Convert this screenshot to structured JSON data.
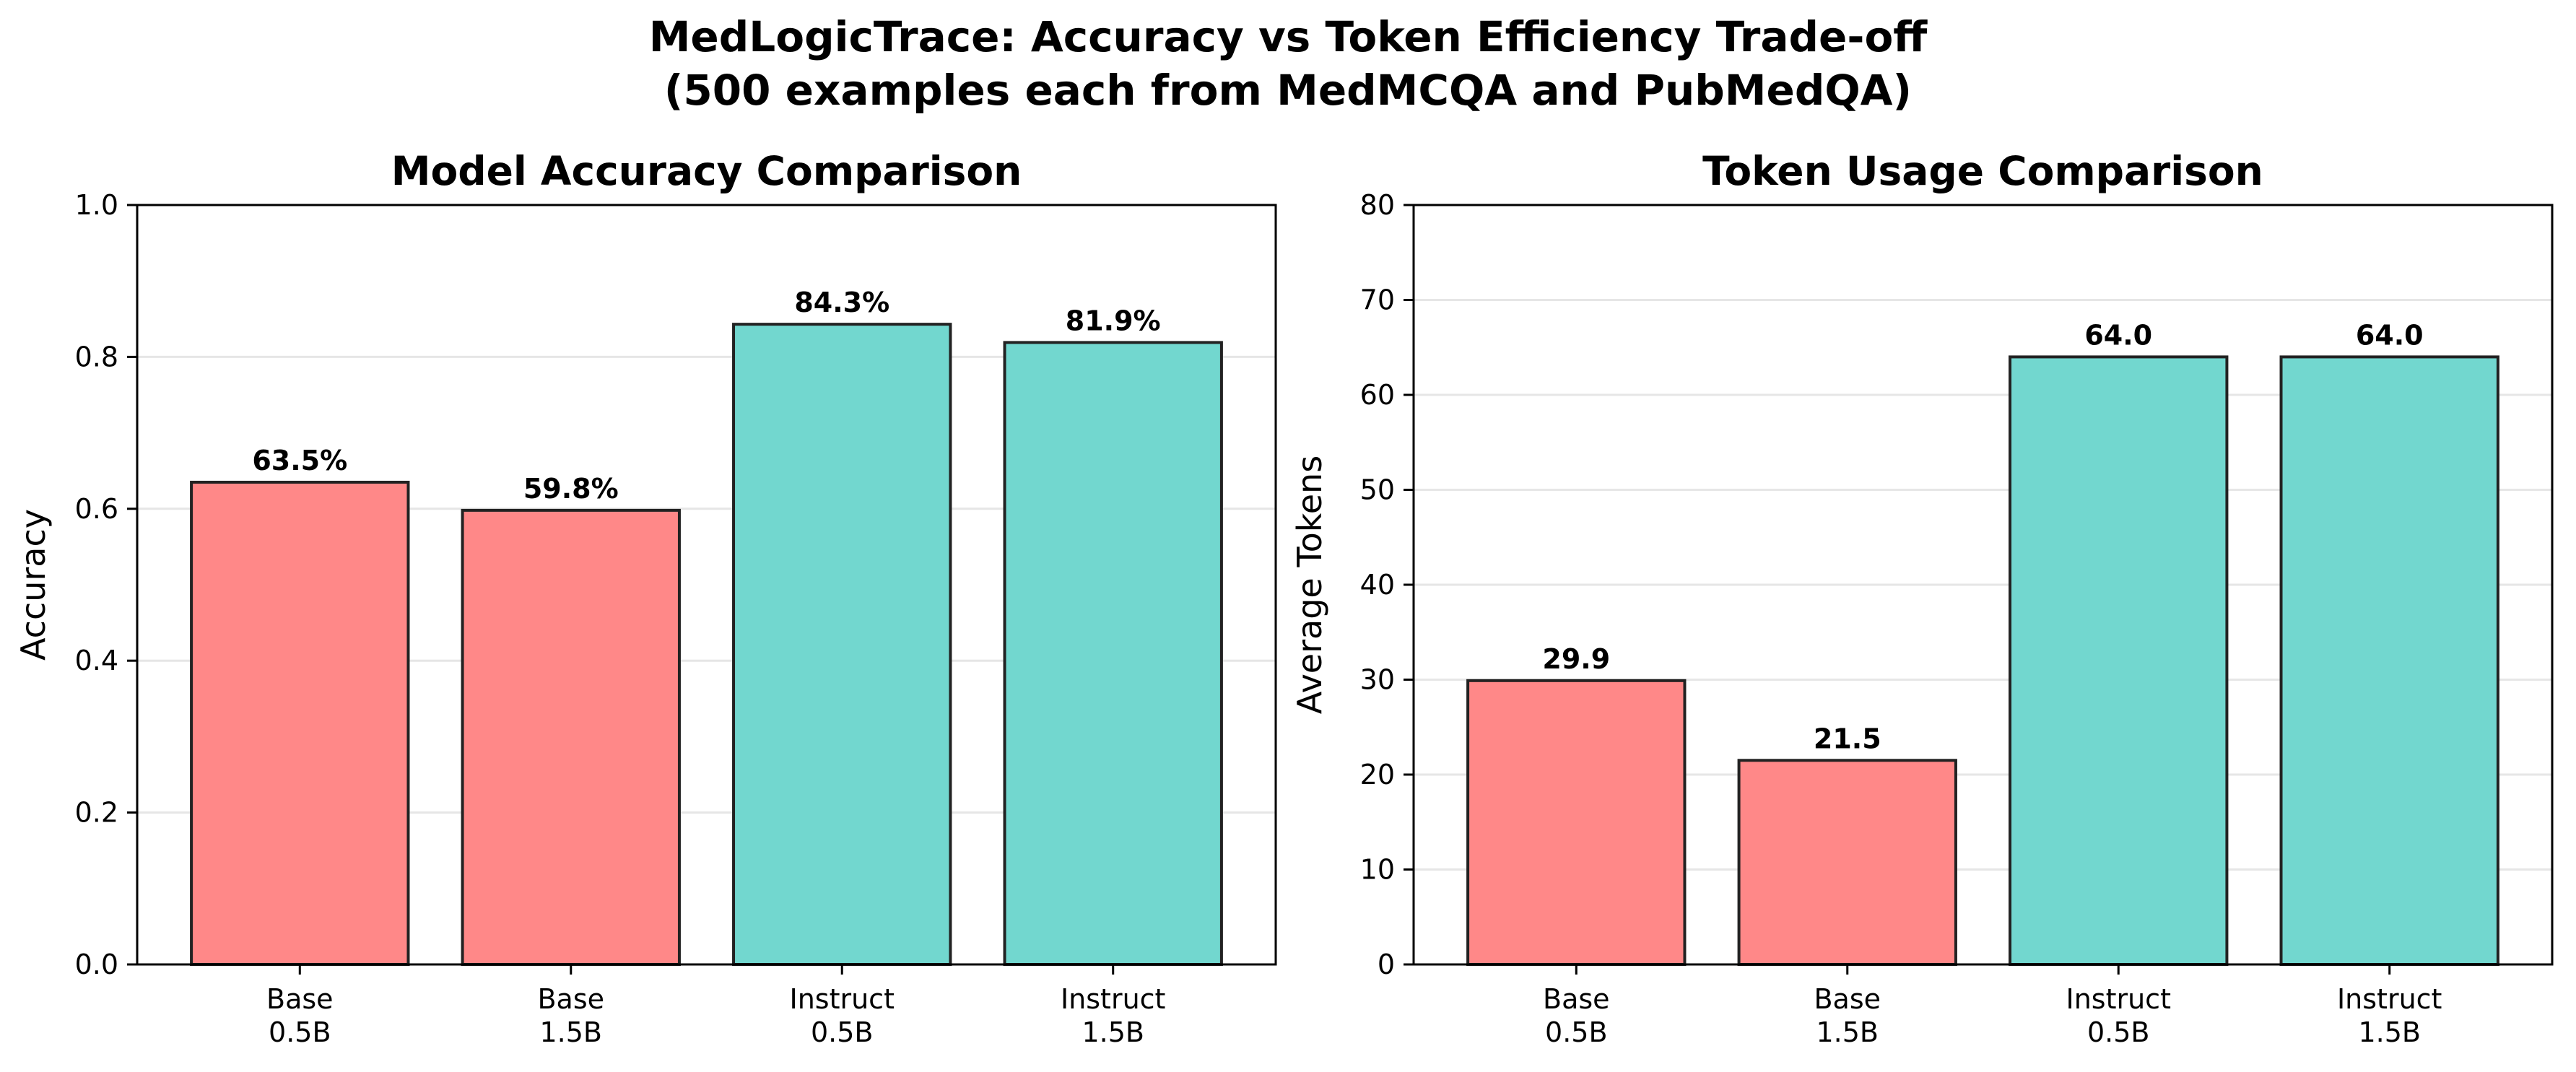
{
  "figure": {
    "title_line1": "MedLogicTrace: Accuracy vs Token Efficiency Trade-off",
    "title_line2": "(500 examples each from MedMCQA and PubMedQA)"
  },
  "colors": {
    "base": "#ff8888",
    "instruct": "#72d7cf",
    "edge": "#222222",
    "grid": "#e6e6e6"
  },
  "chart_data": [
    {
      "type": "bar",
      "title": "Model Accuracy Comparison",
      "xlabel": "",
      "ylabel": "Accuracy",
      "categories": [
        "Base\n0.5B",
        "Base\n1.5B",
        "Instruct\n0.5B",
        "Instruct\n1.5B"
      ],
      "values": [
        0.635,
        0.598,
        0.843,
        0.819
      ],
      "data_labels": [
        "63.5%",
        "59.8%",
        "84.3%",
        "81.9%"
      ],
      "bar_colors": [
        "base",
        "base",
        "instruct",
        "instruct"
      ],
      "ylim": [
        0,
        1.0
      ],
      "yticks": [
        "0.0",
        "0.2",
        "0.4",
        "0.6",
        "0.8",
        "1.0"
      ],
      "grid": "horizontal",
      "legend": "none"
    },
    {
      "type": "bar",
      "title": "Token Usage Comparison",
      "xlabel": "",
      "ylabel": "Average Tokens",
      "categories": [
        "Base\n0.5B",
        "Base\n1.5B",
        "Instruct\n0.5B",
        "Instruct\n1.5B"
      ],
      "values": [
        29.9,
        21.5,
        64.0,
        64.0
      ],
      "data_labels": [
        "29.9",
        "21.5",
        "64.0",
        "64.0"
      ],
      "bar_colors": [
        "base",
        "base",
        "instruct",
        "instruct"
      ],
      "ylim": [
        0,
        80
      ],
      "yticks": [
        "0",
        "10",
        "20",
        "30",
        "40",
        "50",
        "60",
        "70",
        "80"
      ],
      "grid": "horizontal",
      "legend": "none"
    }
  ]
}
